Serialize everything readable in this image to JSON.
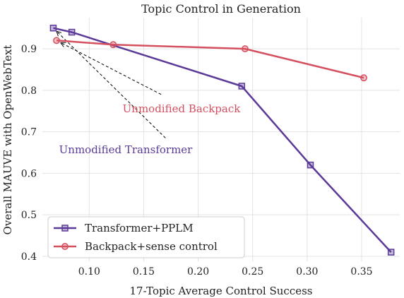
{
  "chart_data": {
    "type": "line",
    "title": "Topic Control in Generation",
    "xlabel": "17-Topic Average Control Success",
    "ylabel": "Overall MAUVE with OpenWebText",
    "xlim": [
      0.057,
      0.385
    ],
    "ylim": [
      0.388,
      0.975
    ],
    "xticks": [
      0.1,
      0.15,
      0.2,
      0.25,
      0.3,
      0.35
    ],
    "xtick_labels": [
      "0.10",
      "0.15",
      "0.20",
      "0.25",
      "0.30",
      "0.35"
    ],
    "yticks": [
      0.4,
      0.5,
      0.6,
      0.7,
      0.8,
      0.9
    ],
    "ytick_labels": [
      "0.4",
      "0.5",
      "0.6",
      "0.7",
      "0.8",
      "0.9"
    ],
    "grid": "both",
    "legend_position": "lower-left",
    "series": [
      {
        "name": "Transformer+PPLM",
        "color": "#5b3a98",
        "marker": "square",
        "x": [
          0.067,
          0.084,
          0.24,
          0.303,
          0.377
        ],
        "y": [
          0.95,
          0.94,
          0.81,
          0.62,
          0.41
        ]
      },
      {
        "name": "Backpack+sense control",
        "color": "#d5505f",
        "marker": "circle",
        "x": [
          0.07,
          0.122,
          0.243,
          0.352
        ],
        "y": [
          0.92,
          0.91,
          0.9,
          0.83
        ]
      }
    ],
    "annotations": [
      {
        "text": "Unmodified Backpack",
        "color": "#d5505f",
        "target_series": 1,
        "target_index": 0,
        "text_anchor": [
          0.166,
          0.79
        ]
      },
      {
        "text": "Unmodified Transformer",
        "color": "#5b3a98",
        "target_series": 0,
        "target_index": 0,
        "text_anchor": [
          0.17,
          0.685
        ]
      }
    ]
  }
}
